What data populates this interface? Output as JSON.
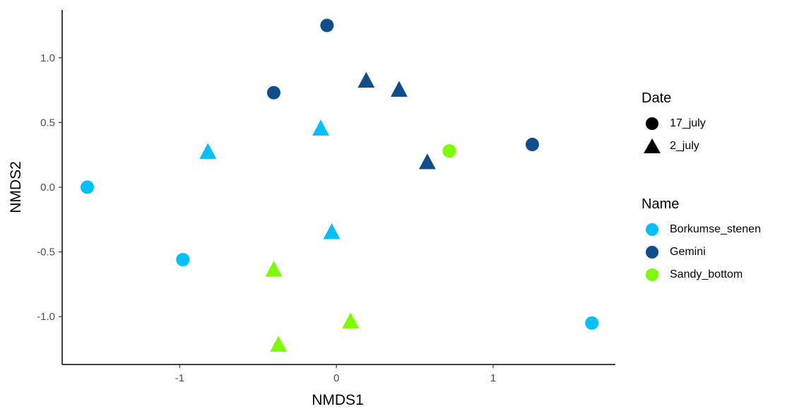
{
  "chart_data": {
    "type": "scatter",
    "xlabel": "NMDS1",
    "ylabel": "NMDS2",
    "xlim": [
      -1.75,
      1.78
    ],
    "ylim": [
      -1.37,
      1.37
    ],
    "x_ticks": [
      -1,
      0,
      1
    ],
    "y_ticks": [
      1.0,
      0.5,
      0.0,
      -0.5,
      -1.0
    ],
    "x_tick_labels": [
      "-1",
      "0",
      "1"
    ],
    "y_tick_labels": [
      "1.0",
      "0.5",
      "0.0",
      "-0.5",
      "-1.0"
    ],
    "grid": false,
    "legend_position": "right",
    "legends": {
      "shape": {
        "title": "Date",
        "entries": [
          {
            "label": "17_july",
            "shape": "circle"
          },
          {
            "label": "2_july",
            "shape": "triangle"
          }
        ]
      },
      "color": {
        "title": "Name",
        "entries": [
          {
            "label": "Borkumse_stenen",
            "color": "#00BFFF"
          },
          {
            "label": "Gemini",
            "color": "#104E8B"
          },
          {
            "label": "Sandy_bottom",
            "color": "#7CFC00"
          }
        ]
      }
    },
    "points": [
      {
        "x": -1.59,
        "y": 0.0,
        "name": "Borkumse_stenen",
        "date": "17_july"
      },
      {
        "x": -0.98,
        "y": -0.56,
        "name": "Borkumse_stenen",
        "date": "17_july"
      },
      {
        "x": 1.63,
        "y": -1.05,
        "name": "Borkumse_stenen",
        "date": "17_july"
      },
      {
        "x": -0.82,
        "y": 0.27,
        "name": "Borkumse_stenen",
        "date": "2_july"
      },
      {
        "x": -0.1,
        "y": 0.45,
        "name": "Borkumse_stenen",
        "date": "2_july"
      },
      {
        "x": -0.03,
        "y": -0.35,
        "name": "Borkumse_stenen",
        "date": "2_july"
      },
      {
        "x": -0.06,
        "y": 1.25,
        "name": "Gemini",
        "date": "17_july"
      },
      {
        "x": -0.4,
        "y": 0.73,
        "name": "Gemini",
        "date": "17_july"
      },
      {
        "x": 1.25,
        "y": 0.33,
        "name": "Gemini",
        "date": "17_july"
      },
      {
        "x": 0.19,
        "y": 0.82,
        "name": "Gemini",
        "date": "2_july"
      },
      {
        "x": 0.4,
        "y": 0.75,
        "name": "Gemini",
        "date": "2_july"
      },
      {
        "x": 0.58,
        "y": 0.19,
        "name": "Gemini",
        "date": "2_july"
      },
      {
        "x": 0.72,
        "y": 0.28,
        "name": "Sandy_bottom",
        "date": "17_july"
      },
      {
        "x": -0.4,
        "y": -0.64,
        "name": "Sandy_bottom",
        "date": "2_july"
      },
      {
        "x": 0.09,
        "y": -1.04,
        "name": "Sandy_bottom",
        "date": "2_july"
      },
      {
        "x": -0.37,
        "y": -1.22,
        "name": "Sandy_bottom",
        "date": "2_july"
      }
    ]
  }
}
